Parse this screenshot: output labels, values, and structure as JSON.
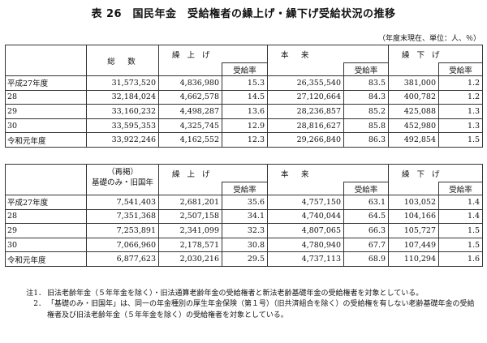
{
  "title": "表 26　国民年金　受給権者の繰上げ・繰下げ受給状況の推移",
  "unit": "（年度末現在、単位：人、％）",
  "table1": {
    "headers": {
      "total": "総　数",
      "early": "繰 上 げ",
      "normal": "本　来",
      "late": "繰 下 げ",
      "rate": "受給率"
    },
    "rows": [
      {
        "year": "平成27年度",
        "total": "31,573,520",
        "early": "4,836,980",
        "early_rate": "15.3",
        "normal": "26,355,540",
        "normal_rate": "83.5",
        "late": "381,000",
        "late_rate": "1.2"
      },
      {
        "year": "28",
        "total": "32,184,024",
        "early": "4,662,578",
        "early_rate": "14.5",
        "normal": "27,120,664",
        "normal_rate": "84.3",
        "late": "400,782",
        "late_rate": "1.2"
      },
      {
        "year": "29",
        "total": "33,160,232",
        "early": "4,498,287",
        "early_rate": "13.6",
        "normal": "28,236,857",
        "normal_rate": "85.2",
        "late": "425,088",
        "late_rate": "1.3"
      },
      {
        "year": "30",
        "total": "33,595,353",
        "early": "4,325,745",
        "early_rate": "12.9",
        "normal": "28,816,627",
        "normal_rate": "85.8",
        "late": "452,980",
        "late_rate": "1.3"
      },
      {
        "year": "令和元年度",
        "total": "33,922,246",
        "early": "4,162,552",
        "early_rate": "12.3",
        "normal": "29,266,840",
        "normal_rate": "86.3",
        "late": "492,854",
        "late_rate": "1.5"
      }
    ]
  },
  "table2": {
    "headers": {
      "total_line1": "（再掲）",
      "total_line2": "基礎のみ・旧国年",
      "early": "繰 上 げ",
      "normal": "本　来",
      "late": "繰 下 げ",
      "rate": "受給率"
    },
    "rows": [
      {
        "year": "平成27年度",
        "total": "7,541,403",
        "early": "2,681,201",
        "early_rate": "35.6",
        "normal": "4,757,150",
        "normal_rate": "63.1",
        "late": "103,052",
        "late_rate": "1.4"
      },
      {
        "year": "28",
        "total": "7,351,368",
        "early": "2,507,158",
        "early_rate": "34.1",
        "normal": "4,740,044",
        "normal_rate": "64.5",
        "late": "104,166",
        "late_rate": "1.4"
      },
      {
        "year": "29",
        "total": "7,253,891",
        "early": "2,341,099",
        "early_rate": "32.3",
        "normal": "4,807,065",
        "normal_rate": "66.3",
        "late": "105,727",
        "late_rate": "1.5"
      },
      {
        "year": "30",
        "total": "7,066,960",
        "early": "2,178,571",
        "early_rate": "30.8",
        "normal": "4,780,940",
        "normal_rate": "67.7",
        "late": "107,449",
        "late_rate": "1.5"
      },
      {
        "year": "令和元年度",
        "total": "6,877,623",
        "early": "2,030,216",
        "early_rate": "29.5",
        "normal": "4,737,113",
        "normal_rate": "68.9",
        "late": "110,294",
        "late_rate": "1.6"
      }
    ]
  },
  "notes": [
    {
      "mark": "注1．",
      "text": "旧法老齢年金（５年年金を除く）・旧法通算老齢年金の受給権者と新法老齢基礎年金の受給権者を対象としている。"
    },
    {
      "mark": "2．",
      "text": "「基礎のみ・旧国年」は、同一の年金種別の厚生年金保険（第１号）（旧共済組合を除く）の受給権を有しない老齢基礎年金の受給権者及び旧法老齢年金（５年年金を除く）の受給権者を対象としている。"
    }
  ]
}
